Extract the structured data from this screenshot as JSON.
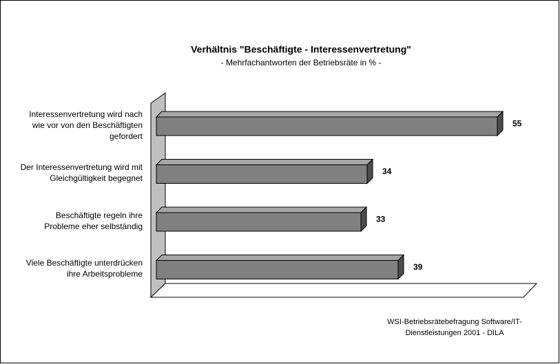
{
  "chart_data": {
    "type": "bar3d_horizontal",
    "title": "Verhältnis \"Beschäftigte - Interessenvertretung\"",
    "subtitle": "- Mehrfachantworten der Betriebsräte in % -",
    "categories": [
      "Interessenvertretung wird nach wie vor von den Beschäftigten gefordert",
      "Der Interessenvertretung wird mit Gleichgültigkeit begegnet",
      "Beschäftigte regeln ihre Probleme eher selbständig",
      "Viele Beschäftigte unterdrücken ihre Arbeitsprobleme"
    ],
    "values": [
      55,
      34,
      33,
      39
    ],
    "color": "#808080",
    "xlim": [
      0,
      60
    ],
    "source": "WSI-Betriebsrätebefragung Software/IT-Dienstleistungen 2001 - DILA"
  }
}
